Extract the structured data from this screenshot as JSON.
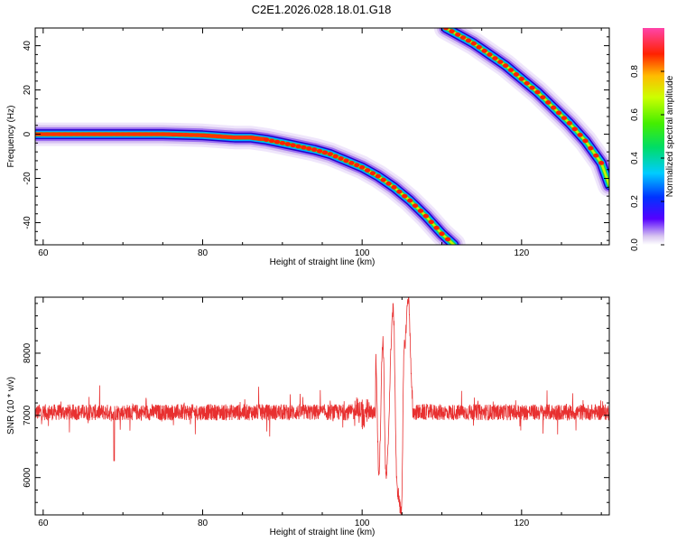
{
  "title": "C2E1.2026.028.18.01.G18",
  "chart_data": [
    {
      "type": "heatmap",
      "xlabel": "Height of straight line (km)",
      "ylabel": "Frequency (Hz)",
      "xlim": [
        59,
        131
      ],
      "ylim": [
        -50,
        48
      ],
      "xticks": [
        60,
        80,
        100,
        120
      ],
      "yticks": [
        -40,
        -20,
        0,
        20,
        40
      ],
      "colorbar": {
        "label": "Normalized spectral amplitude",
        "ticks": [
          "0.0",
          "0.2",
          "0.4",
          "0.6",
          "0.8"
        ],
        "tick_values": [
          0,
          0.2,
          0.4,
          0.6,
          0.8
        ],
        "range": [
          0,
          1
        ]
      },
      "tracks": [
        {
          "points": [
            [
              59,
              0
            ],
            [
              65,
              0
            ],
            [
              70,
              0
            ],
            [
              75,
              0
            ],
            [
              80,
              -0.5
            ],
            [
              84,
              -1.5
            ],
            [
              86,
              -1.5
            ],
            [
              88,
              -2.5
            ],
            [
              90,
              -4
            ],
            [
              92,
              -5.5
            ],
            [
              94,
              -7
            ],
            [
              96,
              -9
            ],
            [
              98,
              -12
            ],
            [
              100,
              -15
            ],
            [
              102,
              -19
            ],
            [
              104,
              -24
            ],
            [
              106,
              -30
            ],
            [
              108,
              -37
            ],
            [
              110,
              -45
            ],
            [
              111.5,
              -50
            ]
          ]
        },
        {
          "points": [
            [
              110.5,
              48
            ],
            [
              112,
              45
            ],
            [
              114,
              41
            ],
            [
              116,
              36
            ],
            [
              118,
              31
            ],
            [
              120,
              25
            ],
            [
              122,
              19
            ],
            [
              124,
              12
            ],
            [
              126,
              5
            ],
            [
              128,
              -3
            ],
            [
              130,
              -13
            ],
            [
              131,
              -23
            ]
          ]
        }
      ]
    },
    {
      "type": "line",
      "xlabel": "Height of straight line (km)",
      "ylabel": "SNR (10 * v/v)",
      "xlim": [
        59,
        131
      ],
      "ylim": [
        5400,
        8900
      ],
      "xticks": [
        60,
        80,
        100,
        120
      ],
      "yticks": [
        6000,
        7000,
        8000
      ],
      "color": "#e83030",
      "baseline": 7050,
      "noise": 130,
      "features": [
        [
          68.9,
          6270
        ],
        [
          101.7,
          7900
        ],
        [
          102.1,
          6100
        ],
        [
          102.6,
          8200
        ],
        [
          103.0,
          6000
        ],
        [
          103.9,
          8700
        ],
        [
          104.4,
          5800
        ],
        [
          104.9,
          5450
        ],
        [
          105.3,
          8100
        ],
        [
          105.8,
          8900
        ],
        [
          106.3,
          7300
        ]
      ]
    }
  ]
}
